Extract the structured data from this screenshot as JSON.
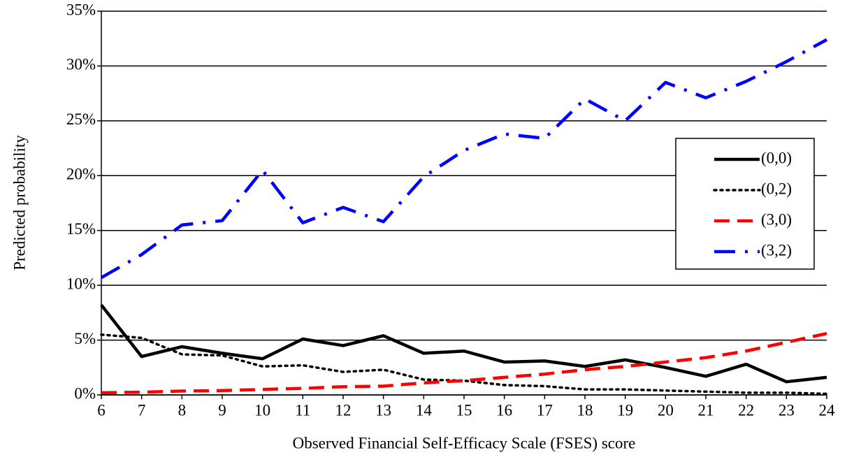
{
  "chart_data": {
    "type": "line",
    "xlabel": "Observed Financial Self-Efficacy Scale (FSES) score",
    "ylabel": "Predicted probability",
    "x": [
      6,
      7,
      8,
      9,
      10,
      11,
      12,
      13,
      14,
      15,
      16,
      17,
      18,
      19,
      20,
      21,
      22,
      23,
      24
    ],
    "xlim": [
      6,
      24
    ],
    "xticks": [
      6,
      7,
      8,
      9,
      10,
      11,
      12,
      13,
      14,
      15,
      16,
      17,
      18,
      19,
      20,
      21,
      22,
      23,
      24
    ],
    "ylim": [
      0,
      35
    ],
    "yticks": [
      {
        "value": 0,
        "label": "0%"
      },
      {
        "value": 5,
        "label": "5%"
      },
      {
        "value": 10,
        "label": "10%"
      },
      {
        "value": 15,
        "label": "15%"
      },
      {
        "value": 20,
        "label": "20%"
      },
      {
        "value": 25,
        "label": "25%"
      },
      {
        "value": 30,
        "label": "30%"
      },
      {
        "value": 35,
        "label": "35%"
      }
    ],
    "grid": true,
    "legend": "right",
    "series": [
      {
        "name": "(0,0)",
        "color": "#000000",
        "dash": "solid",
        "values": [
          8.2,
          3.5,
          4.4,
          3.8,
          3.3,
          5.1,
          4.5,
          5.4,
          3.8,
          4.0,
          3.0,
          3.1,
          2.6,
          3.2,
          2.5,
          1.7,
          2.8,
          1.2,
          1.6
        ]
      },
      {
        "name": "(0,2)",
        "color": "#000000",
        "dash": "dotted",
        "values": [
          5.5,
          5.2,
          3.7,
          3.6,
          2.6,
          2.7,
          2.1,
          2.3,
          1.4,
          1.3,
          0.9,
          0.8,
          0.5,
          0.5,
          0.4,
          0.3,
          0.2,
          0.2,
          0.1
        ]
      },
      {
        "name": "(3,0)",
        "color": "#ff0000",
        "dash": "dashed",
        "values": [
          0.2,
          0.25,
          0.35,
          0.4,
          0.5,
          0.6,
          0.75,
          0.8,
          1.1,
          1.3,
          1.6,
          1.9,
          2.3,
          2.6,
          3.0,
          3.4,
          4.0,
          4.8,
          5.6
        ]
      },
      {
        "name": "(3,2)",
        "color": "#0000ff",
        "dash": "dashdot",
        "values": [
          10.7,
          12.8,
          15.5,
          15.9,
          20.5,
          15.7,
          17.1,
          15.8,
          19.9,
          22.3,
          23.8,
          23.4,
          27.0,
          25.0,
          28.5,
          27.1,
          28.6,
          30.4,
          32.4
        ]
      }
    ]
  }
}
